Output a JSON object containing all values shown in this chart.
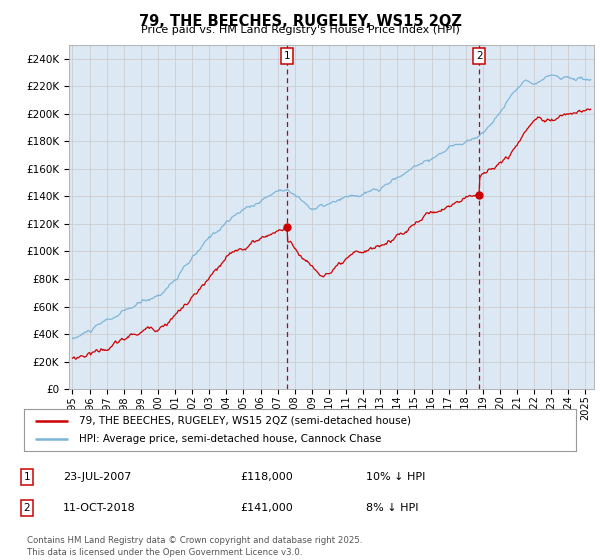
{
  "title": "79, THE BEECHES, RUGELEY, WS15 2QZ",
  "subtitle": "Price paid vs. HM Land Registry's House Price Index (HPI)",
  "legend_line1": "79, THE BEECHES, RUGELEY, WS15 2QZ (semi-detached house)",
  "legend_line2": "HPI: Average price, semi-detached house, Cannock Chase",
  "marker1_date_label": "23-JUL-2007",
  "marker1_price": 118000,
  "marker1_pct": "10% ↓ HPI",
  "marker1_x": 2007.55,
  "marker1_y": 118000,
  "marker2_date_label": "11-OCT-2018",
  "marker2_price": 141000,
  "marker2_pct": "8% ↓ HPI",
  "marker2_x": 2018.78,
  "marker2_y": 141000,
  "hpi_color": "#7ab4d8",
  "price_color": "#cc0000",
  "background_color": "#dce9f5",
  "ylabel_ticks": [
    "£0",
    "£20K",
    "£40K",
    "£60K",
    "£80K",
    "£100K",
    "£120K",
    "£140K",
    "£160K",
    "£180K",
    "£200K",
    "£220K",
    "£240K"
  ],
  "ylim": [
    0,
    250000
  ],
  "xlim_start": 1994.8,
  "xlim_end": 2025.5,
  "footer": "Contains HM Land Registry data © Crown copyright and database right 2025.\nThis data is licensed under the Open Government Licence v3.0."
}
